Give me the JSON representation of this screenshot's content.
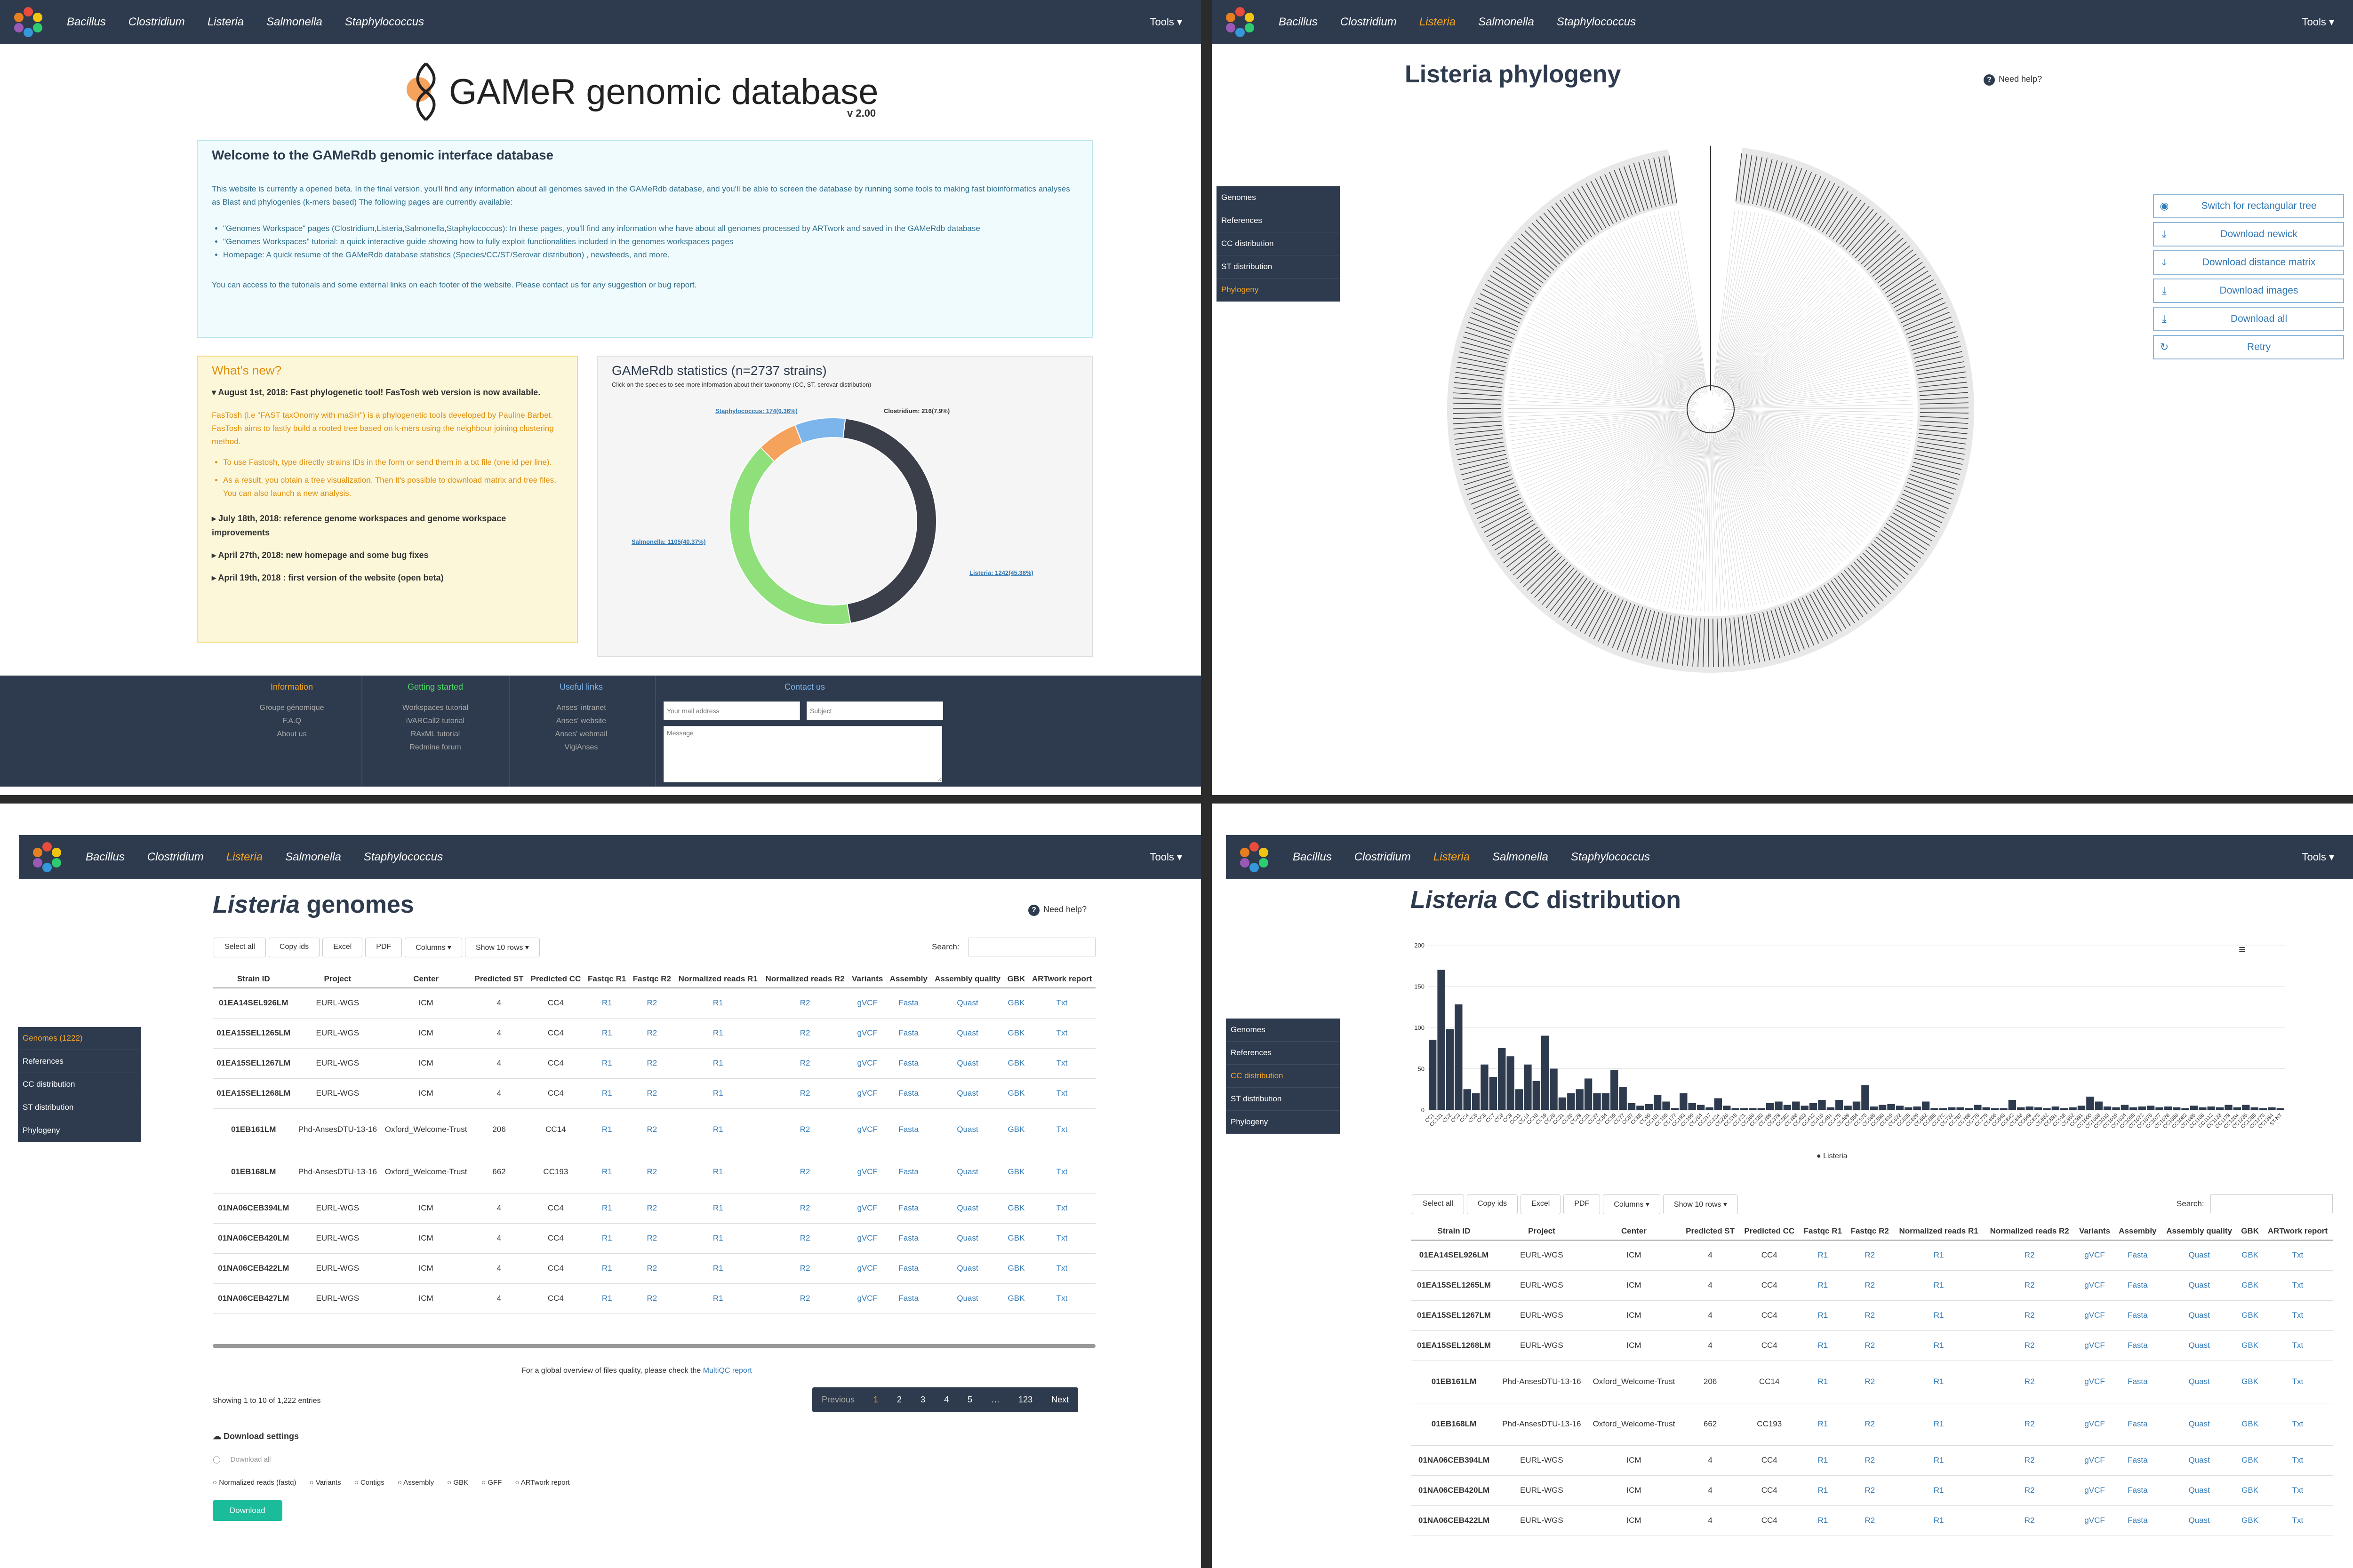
{
  "nav": {
    "items": [
      "Bacillus",
      "Clostridium",
      "Listeria",
      "Salmonella",
      "Staphylococcus"
    ],
    "tools": "Tools"
  },
  "home": {
    "title": "GAMeR genomic database",
    "version": "v 2.00",
    "welcome_title": "Welcome to the GAMeRdb genomic interface database",
    "welcome_p1": "This website is currently a opened beta. In the final version, you'll find any information about all genomes saved in the GAMeRdb database, and you'll be able to screen the database by running some tools to making fast bioinformatics analyses as Blast and phylogenies (k-mers based) The following pages are currently available:",
    "welcome_bullets": [
      "\"Genomes Workspace\" pages (Clostridium,Listeria,Salmonella,Staphylococcus): In these pages, you'll find any information whe have about all genomes processed by ARTwork and saved in the GAMeRdb database",
      "\"Genomes Workspaces\" tutorial: a quick interactive guide showing how to fully exploit functionalities included in the genomes workspaces pages",
      "Homepage: A quick resume of the GAMeRdb database statistics (Species/CC/ST/Serovar distribution) , newsfeeds, and more."
    ],
    "welcome_p2": "You can access to the tutorials and some external links on each footer of the website. Please contact us for any suggestion or bug report.",
    "news_title": "What's new?",
    "news": [
      {
        "title": "August 1st, 2018: Fast phylogenetic tool! FasTosh web version is now available.",
        "open": true
      },
      {
        "title": "July 18th, 2018: reference genome workspaces and genome workspace improvements",
        "open": false
      },
      {
        "title": "April 27th, 2018: new homepage and some bug fixes",
        "open": false
      },
      {
        "title": "April 19th, 2018 : first version of the website (open beta)",
        "open": false
      }
    ],
    "news_body": "FasTosh (i.e \"FAST taxOnomy with maSH\") is a phylogenetic tools developed by Pauline Barbet. FasTosh aims to fastly build a rooted tree based on k-mers using the neighbour joining clustering method.",
    "news_sub": [
      "To use Fastosh, type directly strains IDs in the form or send them in a txt file (one id per line).",
      "As a result, you obtain a tree visualization. Then it's possible to download matrix and tree files. You can also launch a new analysis."
    ],
    "stats_title": "GAMeRdb statistics (n=2737 strains)",
    "stats_sub": "Click on the species to see more information about their taxonomy (CC, ST, serovar distribution)",
    "donut_labels": {
      "staph": "Staphylococcus: 174(6.36%)",
      "clos": "Clostridium: 216(7.9%)",
      "salm": "Salmonella: 1105(40.37%)",
      "list": "Listeria: 1242(45.38%)"
    },
    "footer": {
      "info_title": "Information",
      "info_items": [
        "Groupe génomique",
        "F.A.Q",
        "About us"
      ],
      "start_title": "Getting started",
      "start_items": [
        "Workspaces tutorial",
        "iVARCall2 tutorial",
        "RAxML tutorial",
        "Redmine forum"
      ],
      "links_title": "Useful links",
      "links_items": [
        "Anses' intranet",
        "Anses' website",
        "Anses' webmail",
        "VigiAnses"
      ],
      "contact_title": "Contact us",
      "contact_placeholders": [
        "Your mail address",
        "Subject",
        "Message"
      ]
    }
  },
  "species_pie": [
    {
      "name": "Listeria",
      "value": 1242,
      "color": "#3a3f4a"
    },
    {
      "name": "Salmonella",
      "value": 1105,
      "color": "#8fe07a"
    },
    {
      "name": "Staphylococcus",
      "value": 174,
      "color": "#f5a25d"
    },
    {
      "name": "Clostridium",
      "value": 216,
      "color": "#7cb5ec"
    }
  ],
  "phylo": {
    "title": "Listeria phylogeny",
    "help": "Need help?",
    "buttons": [
      "Switch for rectangular tree",
      "Download newick",
      "Download distance matrix",
      "Download images",
      "Download all",
      "Retry"
    ],
    "side": [
      "Genomes",
      "References",
      "CC distribution",
      "ST distribution",
      "Phylogeny"
    ],
    "active": "Phylogeny"
  },
  "genomes": {
    "title_species": "Listeria",
    "title_rest": " genomes",
    "help": "Need help?",
    "side": [
      "Genomes (1222)",
      "References",
      "CC distribution",
      "ST distribution",
      "Phylogeny"
    ],
    "active": "Genomes (1222)",
    "buttons": [
      "Select all",
      "Copy ids",
      "Excel",
      "PDF",
      "Columns ▾",
      "Show 10 rows ▾"
    ],
    "search_label": "Search:",
    "columns": [
      "Strain ID",
      "Project",
      "Center",
      "Predicted ST",
      "Predicted CC",
      "Fastqc R1",
      "Fastqc R2",
      "Normalized reads R1",
      "Normalized reads R2",
      "Variants",
      "Assembly",
      "Assembly quality",
      "GBK",
      "ARTwork report"
    ],
    "rows": [
      [
        "01EA14SEL926LM",
        "EURL-WGS",
        "ICM",
        "4",
        "CC4",
        "R1",
        "R2",
        "R1",
        "R2",
        "gVCF",
        "Fasta",
        "Quast",
        "GBK",
        "Txt"
      ],
      [
        "01EA15SEL1265LM",
        "EURL-WGS",
        "ICM",
        "4",
        "CC4",
        "R1",
        "R2",
        "R1",
        "R2",
        "gVCF",
        "Fasta",
        "Quast",
        "GBK",
        "Txt"
      ],
      [
        "01EA15SEL1267LM",
        "EURL-WGS",
        "ICM",
        "4",
        "CC4",
        "R1",
        "R2",
        "R1",
        "R2",
        "gVCF",
        "Fasta",
        "Quast",
        "GBK",
        "Txt"
      ],
      [
        "01EA15SEL1268LM",
        "EURL-WGS",
        "ICM",
        "4",
        "CC4",
        "R1",
        "R2",
        "R1",
        "R2",
        "gVCF",
        "Fasta",
        "Quast",
        "GBK",
        "Txt"
      ],
      [
        "01EB161LM",
        "Phd-AnsesDTU-13-16",
        "Oxford_Welcome-Trust",
        "206",
        "CC14",
        "R1",
        "R2",
        "R1",
        "R2",
        "gVCF",
        "Fasta",
        "Quast",
        "GBK",
        "Txt"
      ],
      [
        "01EB168LM",
        "Phd-AnsesDTU-13-16",
        "Oxford_Welcome-Trust",
        "662",
        "CC193",
        "R1",
        "R2",
        "R1",
        "R2",
        "gVCF",
        "Fasta",
        "Quast",
        "GBK",
        "Txt"
      ],
      [
        "01NA06CEB394LM",
        "EURL-WGS",
        "ICM",
        "4",
        "CC4",
        "R1",
        "R2",
        "R1",
        "R2",
        "gVCF",
        "Fasta",
        "Quast",
        "GBK",
        "Txt"
      ],
      [
        "01NA06CEB420LM",
        "EURL-WGS",
        "ICM",
        "4",
        "CC4",
        "R1",
        "R2",
        "R1",
        "R2",
        "gVCF",
        "Fasta",
        "Quast",
        "GBK",
        "Txt"
      ],
      [
        "01NA06CEB422LM",
        "EURL-WGS",
        "ICM",
        "4",
        "CC4",
        "R1",
        "R2",
        "R1",
        "R2",
        "gVCF",
        "Fasta",
        "Quast",
        "GBK",
        "Txt"
      ],
      [
        "01NA06CEB427LM",
        "EURL-WGS",
        "ICM",
        "4",
        "CC4",
        "R1",
        "R2",
        "R1",
        "R2",
        "gVCF",
        "Fasta",
        "Quast",
        "GBK",
        "Txt"
      ]
    ],
    "multiqc_text": "For a global overview of files quality, please check the",
    "multiqc_link": "MultiQC report",
    "showing": "Showing 1 to 10 of 1,222 entries",
    "pager": [
      "Previous",
      "1",
      "2",
      "3",
      "4",
      "5",
      "…",
      "123",
      "Next"
    ],
    "download_title": "Download settings",
    "download_all": "Download all",
    "download_opts": [
      "Normalized reads (fastq)",
      "Variants",
      "Contigs",
      "Assembly",
      "GBK",
      "GFF",
      "ARTwork report"
    ],
    "download_btn": "Download"
  },
  "cc": {
    "title_species": "Listeria",
    "title_rest": " CC distribution",
    "side": [
      "Genomes",
      "References",
      "CC distribution",
      "ST distribution",
      "Phylogeny"
    ],
    "active": "CC distribution",
    "legend": "Listeria",
    "buttons": [
      "Select all",
      "Copy ids",
      "Excel",
      "PDF",
      "Columns ▾",
      "Show 10 rows ▾"
    ],
    "search_label": "Search:",
    "rows_count": 9
  },
  "chart_data": {
    "type": "bar",
    "title": "",
    "xlabel": "",
    "ylabel": "",
    "ylim": [
      0,
      200
    ],
    "yticks": [
      0,
      50,
      100,
      150,
      200
    ],
    "categories": [
      "CC1",
      "CC121",
      "CC2",
      "CC3",
      "CC4",
      "CC5",
      "CC6",
      "CC7",
      "CC8",
      "CC9",
      "CC11",
      "CC14",
      "CC18",
      "CC19",
      "CC20",
      "CC21",
      "CC26",
      "CC29",
      "CC31",
      "CC37",
      "CC54",
      "CC59",
      "CC77",
      "CC87",
      "CC88",
      "CC90",
      "CC101",
      "CC155",
      "CC177",
      "CC193",
      "CC199",
      "CC204",
      "CC217",
      "CC224",
      "CC226",
      "CC315",
      "CC321",
      "CC360",
      "CC363",
      "CC369",
      "CC379",
      "CC382",
      "CC388",
      "CC403",
      "CC412",
      "CC415",
      "CC451",
      "CC475",
      "CC489",
      "CC554",
      "CC573",
      "CC585",
      "CC590",
      "CC619",
      "CC622",
      "CC635",
      "CC639",
      "CC662",
      "CC666",
      "CC672",
      "CC732",
      "CC767",
      "CC768",
      "CC775",
      "CC779",
      "CC806",
      "CC840",
      "CC842",
      "CC848",
      "CC849",
      "CC873",
      "CC882",
      "CC891",
      "CC918",
      "CC952",
      "CC991",
      "CC1000",
      "CC1008",
      "CC1010",
      "CC1019",
      "CC1034",
      "CC1055",
      "CC1072",
      "CC1075",
      "CC1077",
      "CC1078",
      "CC1080",
      "CC1082",
      "CC1085",
      "CC1106",
      "CC1112",
      "CC1133",
      "CC1179",
      "CC1204",
      "CC1235",
      "CC1265",
      "CC1373",
      "CC1394",
      "ST-NT"
    ],
    "values": [
      85,
      170,
      98,
      128,
      25,
      20,
      55,
      40,
      75,
      65,
      25,
      55,
      35,
      90,
      50,
      15,
      20,
      25,
      38,
      20,
      20,
      48,
      28,
      8,
      5,
      7,
      18,
      10,
      2,
      20,
      8,
      6,
      3,
      14,
      5,
      2,
      2,
      2,
      2,
      8,
      10,
      6,
      10,
      5,
      8,
      12,
      3,
      12,
      5,
      10,
      30,
      4,
      6,
      7,
      5,
      3,
      4,
      10,
      2,
      2,
      3,
      3,
      2,
      6,
      3,
      2,
      2,
      12,
      3,
      4,
      3,
      2,
      4,
      2,
      3,
      5,
      16,
      10,
      4,
      3,
      6,
      3,
      4,
      5,
      3,
      4,
      3,
      2,
      5,
      3,
      4,
      3,
      6,
      3,
      6,
      3,
      2,
      3,
      2
    ],
    "series": [
      {
        "name": "Listeria"
      }
    ]
  }
}
